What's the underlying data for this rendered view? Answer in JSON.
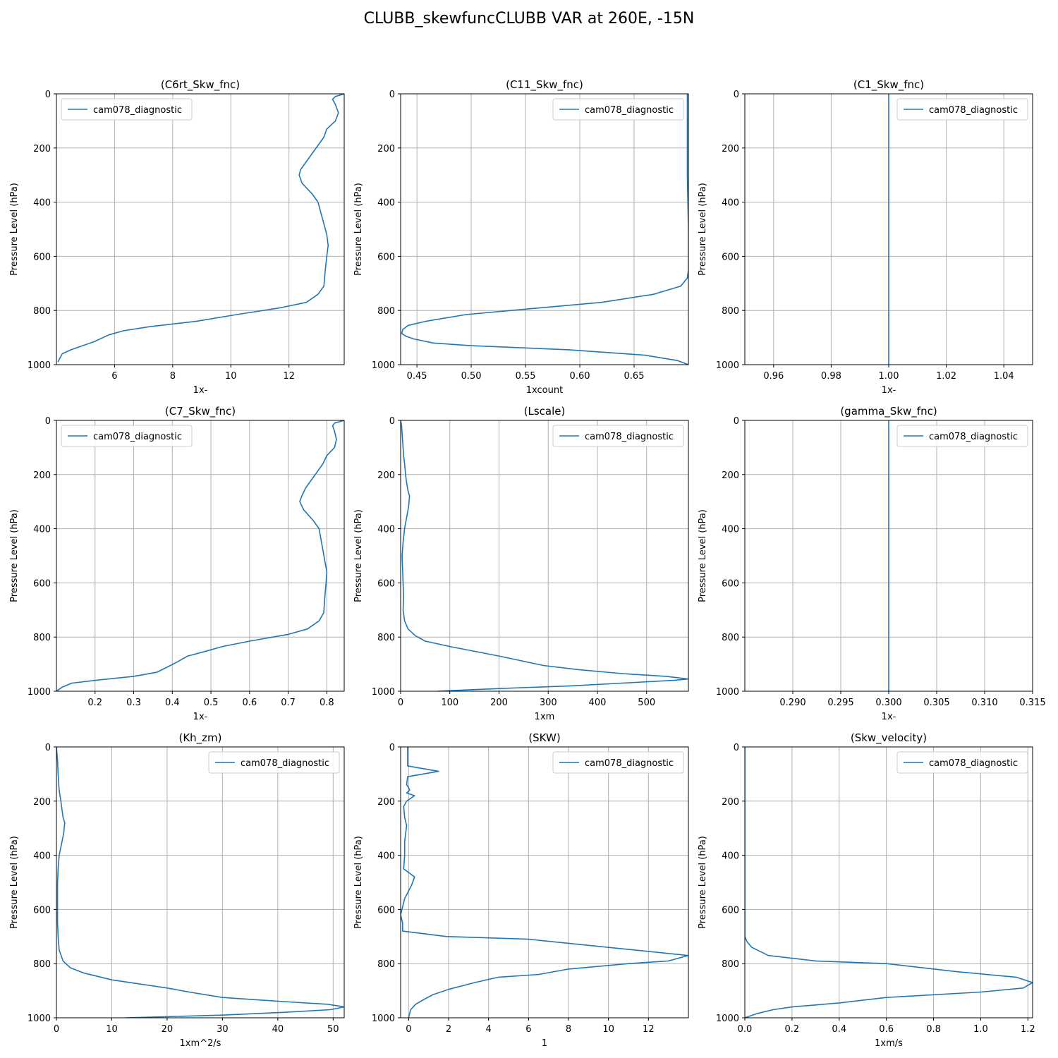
{
  "figure": {
    "title": "CLUBB_skewfuncCLUBB VAR at 260E, -15N"
  },
  "style": {
    "line_color": "#1f77b4",
    "grid_color": "#b0b0b0",
    "legend_border": "#cccccc"
  },
  "chart_data": [
    {
      "type": "line",
      "title": "(C6rt_Skw_fnc)",
      "xlabel": "1x-",
      "ylabel": "Pressure Level (hPa)",
      "xlim": [
        4.0,
        13.9
      ],
      "ylim": [
        1000,
        0
      ],
      "xticks": [
        6,
        8,
        10,
        12
      ],
      "xtick_labels": [
        "6",
        "8",
        "10",
        "12"
      ],
      "yticks": [
        0,
        200,
        400,
        600,
        800,
        1000
      ],
      "legend_loc": "upper left",
      "grid": true,
      "series": [
        {
          "name": "cam078_diagnostic",
          "x": [
            13.9,
            13.6,
            13.5,
            13.6,
            13.7,
            13.6,
            13.3,
            13.2,
            13.0,
            12.8,
            12.6,
            12.4,
            12.35,
            12.45,
            12.8,
            13.0,
            13.1,
            13.2,
            13.3,
            13.35,
            13.3,
            13.25,
            13.2,
            13.0,
            12.6,
            11.7,
            10.2,
            8.8,
            7.2,
            6.3,
            5.8,
            5.3,
            4.9,
            4.5,
            4.2,
            4.05
          ],
          "y": [
            0,
            10,
            20,
            40,
            70,
            100,
            130,
            160,
            190,
            220,
            250,
            280,
            300,
            330,
            370,
            400,
            440,
            480,
            520,
            560,
            600,
            650,
            710,
            740,
            770,
            790,
            815,
            840,
            860,
            875,
            890,
            915,
            930,
            945,
            960,
            990
          ]
        }
      ]
    },
    {
      "type": "line",
      "title": "(C11_Skw_fnc)",
      "xlabel": "1xcount",
      "ylabel": "Pressure Level (hPa)",
      "xlim": [
        0.435,
        0.7
      ],
      "ylim": [
        1000,
        0
      ],
      "xticks": [
        0.45,
        0.5,
        0.55,
        0.6,
        0.65
      ],
      "xtick_labels": [
        "0.45",
        "0.50",
        "0.55",
        "0.60",
        "0.65"
      ],
      "yticks": [
        0,
        200,
        400,
        600,
        800,
        1000
      ],
      "legend_loc": "upper right",
      "grid": true,
      "series": [
        {
          "name": "cam078_diagnostic",
          "x": [
            0.699,
            0.699,
            0.699,
            0.7,
            0.7,
            0.7,
            0.699,
            0.693,
            0.668,
            0.62,
            0.55,
            0.495,
            0.458,
            0.442,
            0.437,
            0.436,
            0.44,
            0.447,
            0.465,
            0.5,
            0.59,
            0.66,
            0.69,
            0.7
          ],
          "y": [
            0,
            100,
            300,
            500,
            600,
            650,
            680,
            710,
            740,
            770,
            795,
            815,
            840,
            855,
            870,
            885,
            895,
            905,
            920,
            930,
            945,
            965,
            985,
            1000
          ]
        }
      ]
    },
    {
      "type": "line",
      "title": "(C1_Skw_fnc)",
      "xlabel": "1x-",
      "ylabel": "Pressure Level (hPa)",
      "xlim": [
        0.95,
        1.05
      ],
      "ylim": [
        1000,
        0
      ],
      "xticks": [
        0.96,
        0.98,
        1.0,
        1.02,
        1.04
      ],
      "xtick_labels": [
        "0.96",
        "0.98",
        "1.00",
        "1.02",
        "1.04"
      ],
      "yticks": [
        0,
        200,
        400,
        600,
        800,
        1000
      ],
      "legend_loc": "upper right",
      "grid": true,
      "series": [
        {
          "name": "cam078_diagnostic",
          "x": [
            1.0,
            1.0
          ],
          "y": [
            0,
            1000
          ]
        }
      ]
    },
    {
      "type": "line",
      "title": "(C7_Skw_fnc)",
      "xlabel": "1x-",
      "ylabel": "Pressure Level (hPa)",
      "xlim": [
        0.1,
        0.845
      ],
      "ylim": [
        1000,
        0
      ],
      "xticks": [
        0.2,
        0.3,
        0.4,
        0.5,
        0.6,
        0.7,
        0.8
      ],
      "xtick_labels": [
        "0.2",
        "0.3",
        "0.4",
        "0.5",
        "0.6",
        "0.7",
        "0.8"
      ],
      "yticks": [
        0,
        200,
        400,
        600,
        800,
        1000
      ],
      "legend_loc": "upper left",
      "grid": true,
      "series": [
        {
          "name": "cam078_diagnostic",
          "x": [
            0.845,
            0.82,
            0.815,
            0.82,
            0.825,
            0.82,
            0.8,
            0.79,
            0.775,
            0.76,
            0.745,
            0.735,
            0.73,
            0.74,
            0.765,
            0.78,
            0.785,
            0.79,
            0.795,
            0.8,
            0.798,
            0.795,
            0.792,
            0.78,
            0.75,
            0.7,
            0.6,
            0.53,
            0.48,
            0.44,
            0.415,
            0.395,
            0.36,
            0.3,
            0.2,
            0.14,
            0.115,
            0.1
          ],
          "y": [
            0,
            10,
            20,
            40,
            70,
            100,
            130,
            160,
            190,
            220,
            250,
            280,
            300,
            330,
            370,
            400,
            440,
            480,
            520,
            560,
            600,
            650,
            710,
            740,
            770,
            790,
            815,
            835,
            855,
            870,
            890,
            905,
            930,
            945,
            960,
            970,
            985,
            1000
          ]
        }
      ]
    },
    {
      "type": "line",
      "title": "(Lscale)",
      "xlabel": "1xm",
      "ylabel": "Pressure Level (hPa)",
      "xlim": [
        0,
        585
      ],
      "ylim": [
        1000,
        0
      ],
      "xticks": [
        0,
        100,
        200,
        300,
        400,
        500
      ],
      "xtick_labels": [
        "0",
        "100",
        "200",
        "300",
        "400",
        "500"
      ],
      "yticks": [
        0,
        200,
        400,
        600,
        800,
        1000
      ],
      "legend_loc": "upper right",
      "grid": true,
      "series": [
        {
          "name": "cam078_diagnostic",
          "x": [
            0,
            2,
            3,
            5,
            6,
            8,
            10,
            12,
            15,
            18,
            16,
            12,
            8,
            5,
            3,
            4,
            5,
            6,
            5,
            8,
            15,
            30,
            50,
            100,
            200,
            290,
            360,
            450,
            540,
            585,
            555,
            450,
            350,
            200,
            75
          ],
          "y": [
            0,
            20,
            50,
            100,
            130,
            160,
            200,
            230,
            260,
            280,
            320,
            360,
            400,
            450,
            500,
            550,
            600,
            650,
            700,
            740,
            770,
            795,
            815,
            835,
            870,
            905,
            920,
            935,
            945,
            955,
            960,
            970,
            980,
            990,
            1000
          ]
        }
      ]
    },
    {
      "type": "line",
      "title": "(gamma_Skw_fnc)",
      "xlabel": "1x-",
      "ylabel": "Pressure Level (hPa)",
      "xlim": [
        0.285,
        0.315
      ],
      "ylim": [
        1000,
        0
      ],
      "xticks": [
        0.29,
        0.295,
        0.3,
        0.305,
        0.31,
        0.315
      ],
      "xtick_labels": [
        "0.290",
        "0.295",
        "0.300",
        "0.305",
        "0.310",
        "0.315"
      ],
      "yticks": [
        0,
        200,
        400,
        600,
        800,
        1000
      ],
      "legend_loc": "upper right",
      "grid": true,
      "series": [
        {
          "name": "cam078_diagnostic",
          "x": [
            0.3,
            0.3
          ],
          "y": [
            0,
            1000
          ]
        }
      ]
    },
    {
      "type": "line",
      "title": "(Kh_zm)",
      "xlabel": "1xm^2/s",
      "ylabel": "Pressure Level (hPa)",
      "xlim": [
        0,
        52
      ],
      "ylim": [
        1000,
        0
      ],
      "xticks": [
        0,
        10,
        20,
        30,
        40,
        50
      ],
      "xtick_labels": [
        "0",
        "10",
        "20",
        "30",
        "40",
        "50"
      ],
      "yticks": [
        0,
        200,
        400,
        600,
        800,
        1000
      ],
      "legend_loc": "upper right",
      "grid": true,
      "series": [
        {
          "name": "cam078_diagnostic",
          "x": [
            0,
            0.2,
            0.3,
            0.4,
            0.5,
            0.8,
            1.0,
            1.2,
            1.5,
            1.3,
            0.9,
            0.5,
            0.3,
            0.2,
            0.2,
            0.2,
            0.2,
            0.3,
            0.5,
            1.2,
            2.5,
            5.0,
            10.0,
            20.0,
            24.0,
            30.0,
            41.0,
            49.0,
            52.0,
            49.5,
            41.0,
            30.0,
            12.5
          ],
          "y": [
            0,
            50,
            100,
            130,
            160,
            200,
            230,
            260,
            280,
            320,
            360,
            400,
            450,
            500,
            550,
            600,
            650,
            700,
            750,
            790,
            815,
            835,
            860,
            890,
            905,
            925,
            940,
            950,
            960,
            970,
            980,
            990,
            1000
          ]
        }
      ]
    },
    {
      "type": "line",
      "title": "(SKW)",
      "xlabel": "1",
      "ylabel": "Pressure Level (hPa)",
      "xlim": [
        -0.4,
        14.0
      ],
      "ylim": [
        1000,
        0
      ],
      "xticks": [
        0,
        2,
        4,
        6,
        8,
        10,
        12
      ],
      "xtick_labels": [
        "0",
        "2",
        "4",
        "6",
        "8",
        "10",
        "12"
      ],
      "yticks": [
        0,
        200,
        400,
        600,
        800,
        1000
      ],
      "legend_loc": "upper right",
      "grid": true,
      "series": [
        {
          "name": "cam078_diagnostic",
          "x": [
            -0.05,
            -0.05,
            -0.05,
            1.5,
            -0.05,
            -0.1,
            0.0,
            0.05,
            -0.1,
            0.3,
            -0.1,
            -0.25,
            -0.2,
            -0.1,
            -0.15,
            -0.2,
            -0.2,
            -0.25,
            0.3,
            0.15,
            -0.2,
            -0.4,
            -0.3,
            -0.3,
            1.9,
            6.0,
            14.0,
            13.0,
            11.0,
            8.0,
            6.5,
            4.5,
            3.3,
            2.0,
            1.2,
            0.7,
            0.35,
            0.1,
            0.0
          ],
          "y": [
            0,
            40,
            70,
            90,
            110,
            140,
            150,
            160,
            170,
            180,
            200,
            220,
            260,
            290,
            320,
            350,
            400,
            450,
            480,
            510,
            560,
            620,
            650,
            680,
            700,
            710,
            770,
            790,
            800,
            820,
            840,
            850,
            870,
            895,
            915,
            935,
            950,
            970,
            1000
          ]
        }
      ]
    },
    {
      "type": "line",
      "title": "(Skw_velocity)",
      "xlabel": "1xm/s",
      "ylabel": "Pressure Level (hPa)",
      "xlim": [
        0,
        1.22
      ],
      "ylim": [
        1000,
        0
      ],
      "xticks": [
        0.0,
        0.2,
        0.4,
        0.6,
        0.8,
        1.0,
        1.2
      ],
      "xtick_labels": [
        "0.0",
        "0.2",
        "0.4",
        "0.6",
        "0.8",
        "1.0",
        "1.2"
      ],
      "yticks": [
        0,
        200,
        400,
        600,
        800,
        1000
      ],
      "legend_loc": "upper right",
      "grid": true,
      "series": [
        {
          "name": "cam078_diagnostic",
          "x": [
            0.0,
            0.0,
            0.0,
            0.0,
            0.0,
            0.0,
            0.01,
            0.03,
            0.1,
            0.3,
            0.6,
            0.9,
            1.15,
            1.22,
            1.18,
            1.0,
            0.6,
            0.4,
            0.2,
            0.12,
            0.05,
            0.0
          ],
          "y": [
            0,
            100,
            300,
            500,
            600,
            700,
            720,
            740,
            770,
            790,
            800,
            830,
            850,
            870,
            890,
            905,
            925,
            945,
            960,
            970,
            985,
            1000
          ]
        }
      ]
    }
  ]
}
